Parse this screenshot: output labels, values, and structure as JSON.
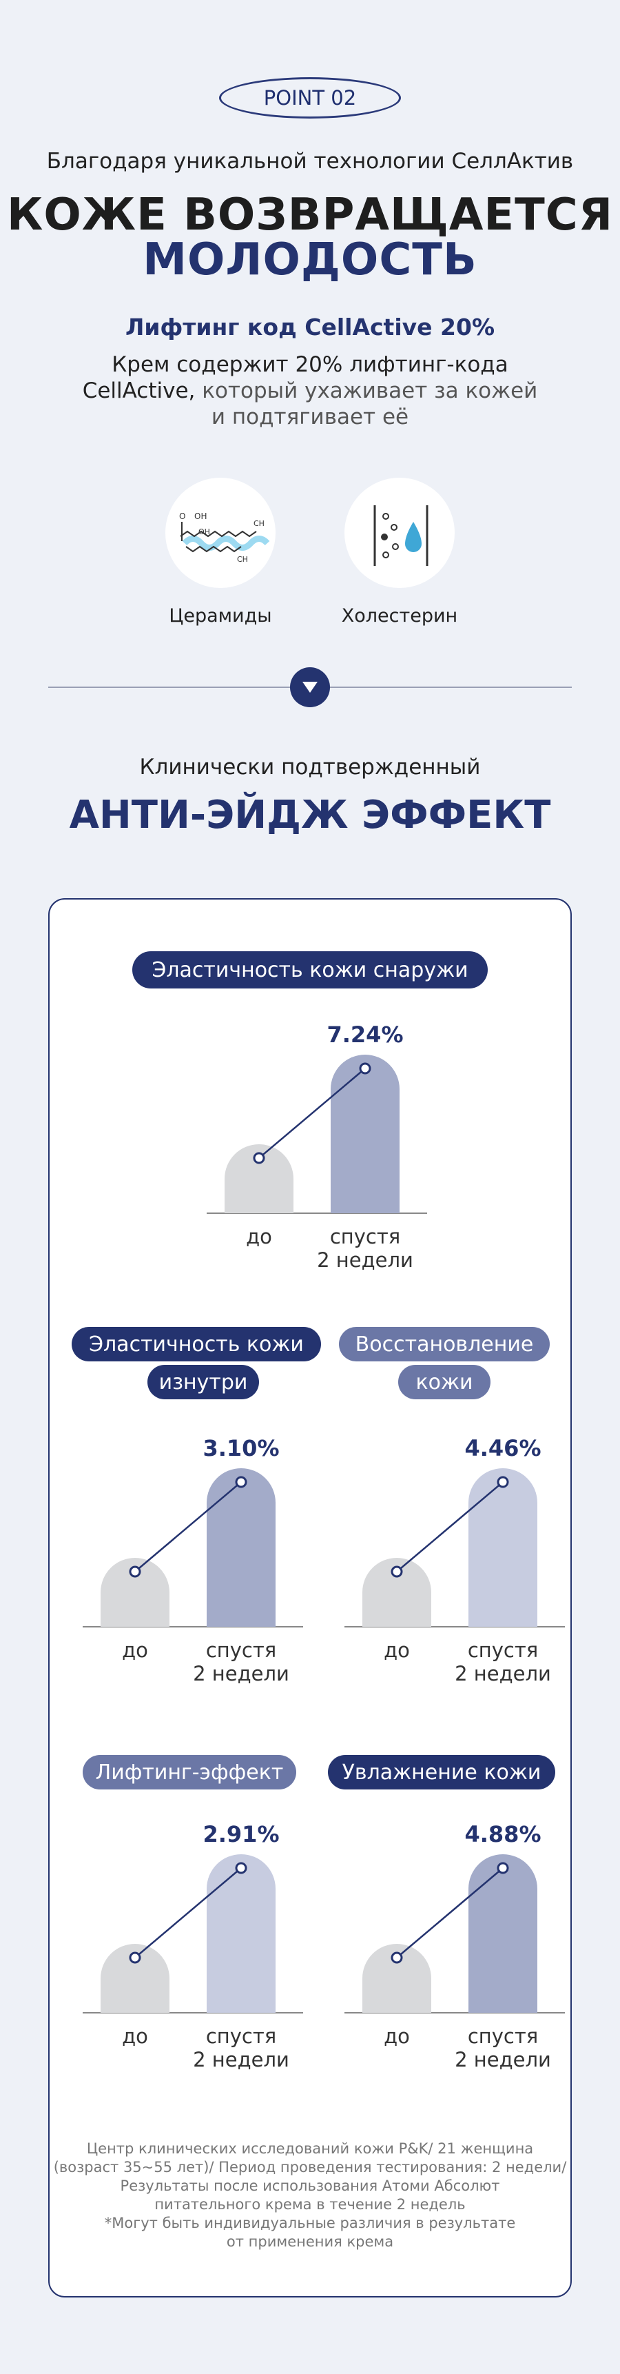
{
  "point_label": "POINT 02",
  "subtitle": "Благодаря уникальной технологии СеллАктив",
  "headline": {
    "line1": "КОЖЕ ВОЗВРАЩАЕТСЯ",
    "line2": "МОЛОДОСТЬ"
  },
  "lift_code": "Лифтинг код CellActive 20%",
  "description": {
    "line1": "Крем содержит 20% лифтинг-кода",
    "line2_strong": "CellActive,",
    "line2_rest": " который ухаживает за кожей",
    "line3": "и подтягивает её"
  },
  "ingredients": [
    {
      "label": "Церамиды",
      "icon": "ceramide-molecule-icon"
    },
    {
      "label": "Холестерин",
      "icon": "cholesterol-drops-icon"
    }
  ],
  "clinical": {
    "line1": "Клинически подтвержденный",
    "line2": "АНТИ-ЭЙДЖ ЭФФЕКТ"
  },
  "colors": {
    "navy": "#24336f",
    "bar_before": "#d8d9db",
    "bar_after_mid": "#a3abc9",
    "bar_after_light": "#c7cce0",
    "pill_light": "#6b77a6"
  },
  "chart_data": [
    {
      "type": "bar",
      "title": "Эластичность кожи снаружи",
      "categories": [
        "до",
        "спустя 2 недели"
      ],
      "value_label": "7.24%",
      "value": 7.24
    },
    {
      "type": "bar",
      "title": "Эластичность кожи изнутри",
      "title_lines": [
        "Эластичность кожи",
        "изнутри"
      ],
      "categories": [
        "до",
        "спустя 2 недели"
      ],
      "value_label": "3.10%",
      "value": 3.1
    },
    {
      "type": "bar",
      "title": "Восстановление кожи",
      "title_lines": [
        "Восстановление",
        "кожи"
      ],
      "categories": [
        "до",
        "спустя 2 недели"
      ],
      "value_label": "4.46%",
      "value": 4.46
    },
    {
      "type": "bar",
      "title": "Лифтинг-эффект",
      "categories": [
        "до",
        "спустя 2 недели"
      ],
      "value_label": "2.91%",
      "value": 2.91
    },
    {
      "type": "bar",
      "title": "Увлажнение кожи",
      "categories": [
        "до",
        "спустя 2 недели"
      ],
      "value_label": "4.88%",
      "value": 4.88
    }
  ],
  "x_labels": {
    "before": "до",
    "after_line1": "спустя",
    "after_line2": "2 недели"
  },
  "footnote": [
    "Центр клинических исследований кожи P&K/ 21 женщина",
    "(возраст 35~55 лет)/ Период проведения тестирования: 2 недели/",
    "Результаты после использования Атоми Абсолют",
    "питательного крема в течение 2 недель",
    "*Могут быть индивидуальные различия в результате",
    "от применения крема"
  ]
}
